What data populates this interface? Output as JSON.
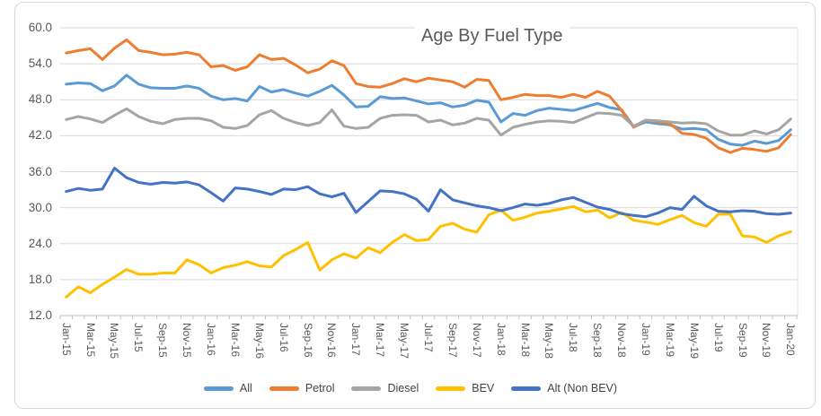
{
  "title": "Age By Fuel Type",
  "colors": {
    "gridline": "#d9d9d9",
    "axis": "#bfbfbf",
    "text": "#595959",
    "border": "#d9d9d9"
  },
  "chart_data": {
    "type": "line",
    "title": "Age By Fuel Type",
    "xlabel": "",
    "ylabel": "",
    "ylim": [
      12,
      60
    ],
    "y_tick_step": 6,
    "y_tick_labels": [
      "60.0",
      "54.0",
      "48.0",
      "42.0",
      "36.0",
      "30.0",
      "24.0",
      "18.0",
      "12.0"
    ],
    "x_label_every": 2,
    "grid": true,
    "legend_position": "bottom",
    "x": [
      "Jan-15",
      "Feb-15",
      "Mar-15",
      "Apr-15",
      "May-15",
      "Jun-15",
      "Jul-15",
      "Aug-15",
      "Sep-15",
      "Oct-15",
      "Nov-15",
      "Dec-15",
      "Jan-16",
      "Feb-16",
      "Mar-16",
      "Apr-16",
      "May-16",
      "Jun-16",
      "Jul-16",
      "Aug-16",
      "Sep-16",
      "Oct-16",
      "Nov-16",
      "Dec-16",
      "Jan-17",
      "Feb-17",
      "Mar-17",
      "Apr-17",
      "May-17",
      "Jun-17",
      "Jul-17",
      "Aug-17",
      "Sep-17",
      "Oct-17",
      "Nov-17",
      "Dec-17",
      "Jan-18",
      "Feb-18",
      "Mar-18",
      "Apr-18",
      "May-18",
      "Jun-18",
      "Jul-18",
      "Aug-18",
      "Sep-18",
      "Oct-18",
      "Nov-18",
      "Dec-18",
      "Jan-19",
      "Feb-19",
      "Mar-19",
      "Apr-19",
      "May-19",
      "Jun-19",
      "Jul-19",
      "Aug-19",
      "Sep-19",
      "Oct-19",
      "Nov-19",
      "Dec-19",
      "Jan-20"
    ],
    "series": [
      {
        "name": "All",
        "color": "#5b9bd5",
        "values": [
          50.6,
          50.8,
          50.7,
          49.5,
          50.3,
          52.1,
          50.6,
          50.0,
          49.9,
          49.9,
          50.3,
          49.9,
          48.6,
          48.0,
          48.2,
          47.8,
          50.2,
          49.3,
          49.7,
          49.1,
          48.6,
          49.4,
          50.4,
          48.8,
          46.8,
          46.9,
          48.5,
          48.2,
          48.3,
          47.8,
          47.3,
          47.5,
          46.8,
          47.1,
          47.9,
          47.6,
          44.3,
          45.7,
          45.4,
          46.2,
          46.6,
          46.4,
          46.2,
          46.8,
          47.4,
          46.7,
          46.3,
          43.5,
          44.3,
          44.0,
          43.8,
          43.1,
          43.2,
          43.0,
          41.4,
          40.6,
          40.4,
          41.1,
          40.7,
          41.2,
          43.0
        ]
      },
      {
        "name": "Petrol",
        "color": "#ed7d31",
        "values": [
          55.8,
          56.2,
          56.5,
          54.7,
          56.6,
          58.0,
          56.2,
          55.9,
          55.5,
          55.6,
          55.9,
          55.5,
          53.5,
          53.7,
          52.9,
          53.5,
          55.5,
          54.7,
          54.9,
          53.8,
          52.5,
          53.1,
          54.5,
          53.7,
          50.7,
          50.2,
          50.1,
          50.7,
          51.5,
          51.0,
          51.6,
          51.3,
          51.0,
          50.1,
          51.4,
          51.2,
          48.0,
          48.4,
          48.9,
          48.7,
          48.7,
          48.4,
          48.9,
          48.4,
          49.4,
          48.6,
          46.2,
          43.4,
          44.6,
          44.3,
          44.0,
          42.4,
          42.2,
          41.6,
          40.0,
          39.2,
          39.9,
          39.7,
          39.4,
          40.0,
          42.2
        ]
      },
      {
        "name": "Diesel",
        "color": "#a5a5a5",
        "values": [
          44.7,
          45.2,
          44.8,
          44.2,
          45.4,
          46.5,
          45.2,
          44.4,
          44.0,
          44.7,
          44.9,
          44.9,
          44.5,
          43.4,
          43.2,
          43.7,
          45.5,
          46.2,
          44.9,
          44.2,
          43.7,
          44.2,
          46.3,
          43.6,
          43.2,
          43.4,
          44.9,
          45.4,
          45.5,
          45.4,
          44.3,
          44.6,
          43.8,
          44.1,
          44.9,
          44.6,
          42.1,
          43.4,
          43.9,
          44.3,
          44.5,
          44.4,
          44.2,
          45.0,
          45.8,
          45.7,
          45.4,
          43.6,
          44.6,
          44.5,
          44.3,
          44.1,
          44.2,
          44.0,
          42.8,
          42.1,
          42.1,
          42.8,
          42.3,
          43.0,
          44.8
        ]
      },
      {
        "name": "BEV",
        "color": "#ffc000",
        "values": [
          15.1,
          16.8,
          15.8,
          17.2,
          18.4,
          19.7,
          18.9,
          18.9,
          19.1,
          19.1,
          21.3,
          20.5,
          19.1,
          20.0,
          20.4,
          21.0,
          20.3,
          20.1,
          22.0,
          23.0,
          24.2,
          19.6,
          21.3,
          22.3,
          21.6,
          23.3,
          22.5,
          24.2,
          25.5,
          24.5,
          24.7,
          26.9,
          27.4,
          26.4,
          25.9,
          28.8,
          29.6,
          27.9,
          28.4,
          29.1,
          29.4,
          29.8,
          30.2,
          29.3,
          29.6,
          28.3,
          29.2,
          27.9,
          27.6,
          27.2,
          28.0,
          28.7,
          27.5,
          26.9,
          28.9,
          28.9,
          25.3,
          25.1,
          24.2,
          25.3,
          26.0
        ]
      },
      {
        "name": "Alt (Non BEV)",
        "color": "#4472c4",
        "values": [
          32.7,
          33.2,
          32.9,
          33.1,
          36.6,
          35.0,
          34.2,
          33.9,
          34.2,
          34.1,
          34.3,
          33.8,
          32.5,
          31.1,
          33.3,
          33.1,
          32.7,
          32.2,
          33.1,
          33.0,
          33.5,
          32.3,
          31.8,
          32.4,
          29.2,
          31.0,
          32.8,
          32.7,
          32.3,
          31.4,
          29.4,
          33.0,
          31.3,
          30.8,
          30.3,
          30.0,
          29.5,
          30.0,
          30.6,
          30.4,
          30.7,
          31.3,
          31.7,
          30.9,
          30.1,
          29.7,
          29.0,
          28.7,
          28.5,
          29.1,
          30.0,
          29.7,
          31.9,
          30.3,
          29.4,
          29.3,
          29.5,
          29.4,
          29.0,
          28.9,
          29.1
        ]
      }
    ]
  }
}
